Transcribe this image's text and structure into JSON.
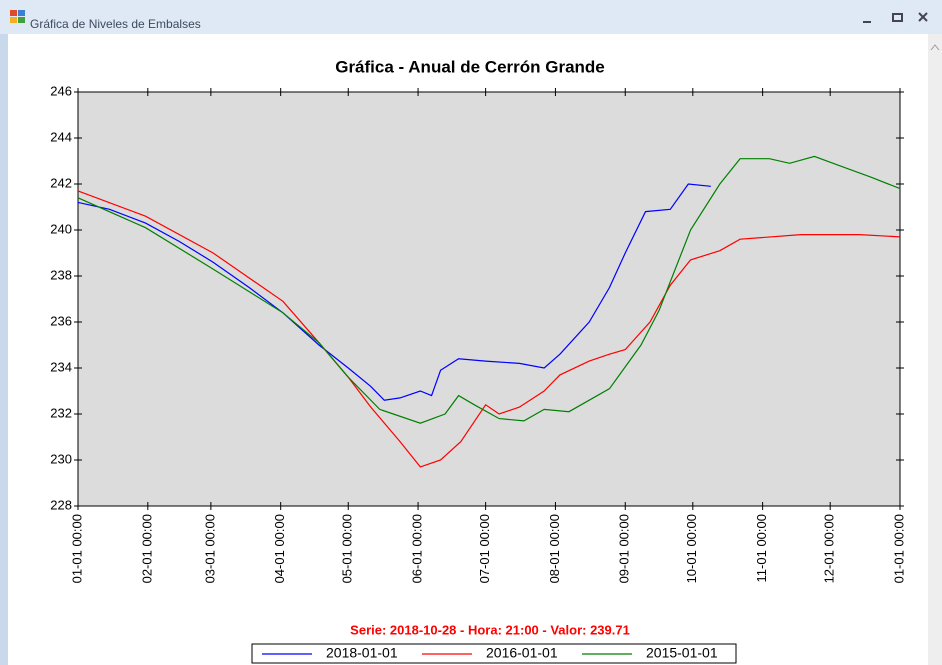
{
  "window": {
    "title": "Gráfica de Niveles de Embalses"
  },
  "chart_data": {
    "type": "line",
    "title": "Gráfica - Anual de Cerrón Grande",
    "annotation": "Serie: 2018-10-28 - Hora: 21:00 - Valor: 239.71",
    "xlim": [
      0,
      365
    ],
    "xticks": [
      {
        "value": 0,
        "label": "01-01 00:00"
      },
      {
        "value": 31,
        "label": "02-01 00:00"
      },
      {
        "value": 59,
        "label": "03-01 00:00"
      },
      {
        "value": 90,
        "label": "04-01 00:00"
      },
      {
        "value": 120,
        "label": "05-01 00:00"
      },
      {
        "value": 151,
        "label": "06-01 00:00"
      },
      {
        "value": 181,
        "label": "07-01 00:00"
      },
      {
        "value": 212,
        "label": "08-01 00:00"
      },
      {
        "value": 243,
        "label": "09-01 00:00"
      },
      {
        "value": 273,
        "label": "10-01 00:00"
      },
      {
        "value": 304,
        "label": "11-01 00:00"
      },
      {
        "value": 334,
        "label": "12-01 00:00"
      },
      {
        "value": 365,
        "label": "01-01 00:00"
      }
    ],
    "ylim": [
      228,
      246
    ],
    "yticks": [
      228,
      230,
      232,
      234,
      236,
      238,
      240,
      242,
      244,
      246
    ],
    "series": [
      {
        "name": "2018-01-01",
        "color": "#0000ff",
        "x": [
          0,
          14,
          30,
          45,
          60,
          76,
          91,
          107,
          120,
          130,
          136,
          143,
          152,
          157,
          161,
          169,
          181,
          196,
          207,
          214,
          227,
          236,
          243,
          252,
          263,
          271,
          281
        ],
        "values": [
          241.2,
          240.9,
          240.3,
          239.5,
          238.6,
          237.5,
          236.4,
          235.0,
          234.0,
          233.2,
          232.6,
          232.7,
          233.0,
          232.8,
          233.9,
          234.4,
          234.3,
          234.2,
          234.0,
          234.6,
          236.0,
          237.5,
          239.0,
          240.8,
          240.9,
          242.0,
          241.9
        ]
      },
      {
        "name": "2016-01-01",
        "color": "#ff0000",
        "x": [
          0,
          30,
          60,
          91,
          107,
          120,
          130,
          143,
          152,
          161,
          170,
          181,
          187,
          196,
          207,
          214,
          227,
          236,
          243,
          254,
          263,
          272,
          285,
          294,
          321,
          347,
          365
        ],
        "values": [
          241.7,
          240.6,
          239.0,
          236.9,
          235.1,
          233.6,
          232.3,
          230.8,
          229.7,
          230.0,
          230.8,
          232.4,
          232.0,
          232.3,
          233.0,
          233.7,
          234.3,
          234.6,
          234.8,
          236.0,
          237.6,
          238.7,
          239.1,
          239.6,
          239.8,
          239.8,
          239.7
        ]
      },
      {
        "name": "2015-01-01",
        "color": "#008000",
        "x": [
          0,
          30,
          60,
          91,
          107,
          120,
          134,
          152,
          163,
          169,
          176,
          187,
          198,
          207,
          218,
          227,
          236,
          250,
          258,
          272,
          285,
          294,
          307,
          316,
          327,
          338,
          352,
          365
        ],
        "values": [
          241.4,
          240.1,
          238.3,
          236.4,
          235.1,
          233.6,
          232.2,
          231.6,
          232.0,
          232.8,
          232.4,
          231.8,
          231.7,
          232.2,
          232.1,
          232.6,
          233.1,
          235.0,
          236.5,
          240.0,
          242.0,
          243.1,
          243.1,
          242.9,
          243.2,
          242.8,
          242.3,
          241.8
        ]
      }
    ]
  }
}
